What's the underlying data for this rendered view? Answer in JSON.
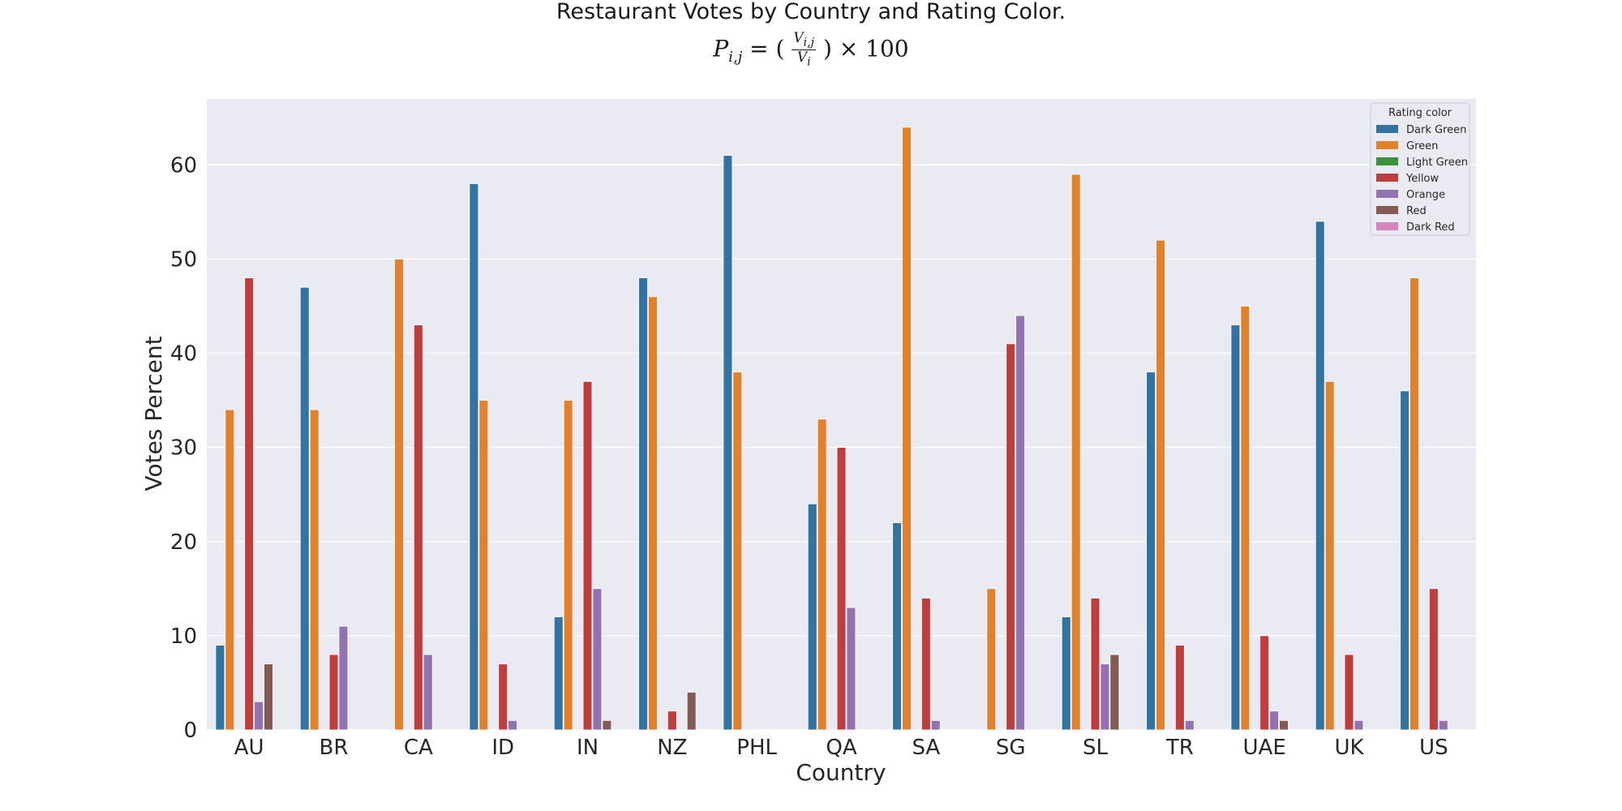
{
  "chart_data": {
    "type": "bar",
    "title": "Restaurant Votes by Country and Rating Color.",
    "subtitle": "P_{i,j} = (V_{i,j} / V_i) × 100",
    "xlabel": "Country",
    "ylabel": "Votes Percent",
    "ylim": [
      0,
      67
    ],
    "yticks": [
      0,
      10,
      20,
      30,
      40,
      50,
      60
    ],
    "grid": true,
    "legend_title": "Rating color",
    "legend_position": "top-right",
    "categories": [
      "AU",
      "BR",
      "CA",
      "ID",
      "IN",
      "NZ",
      "PHL",
      "QA",
      "SA",
      "SG",
      "SL",
      "TR",
      "UAE",
      "UK",
      "US"
    ],
    "series": [
      {
        "name": "Dark Green",
        "color": "#3274a1",
        "values": [
          9,
          47,
          0,
          58,
          12,
          48,
          61,
          24,
          22,
          0,
          12,
          38,
          43,
          54,
          36
        ]
      },
      {
        "name": "Green",
        "color": "#e1812c",
        "values": [
          34,
          34,
          50,
          35,
          35,
          46,
          38,
          33,
          64,
          15,
          59,
          52,
          45,
          37,
          48
        ]
      },
      {
        "name": "Light Green",
        "color": "#3a923a",
        "values": [
          0,
          0,
          0,
          0,
          0,
          0,
          0,
          0,
          0,
          0,
          0,
          0,
          0,
          0,
          0
        ]
      },
      {
        "name": "Yellow",
        "color": "#c03d3e",
        "values": [
          48,
          8,
          43,
          7,
          37,
          2,
          0,
          30,
          14,
          41,
          14,
          9,
          10,
          8,
          15
        ]
      },
      {
        "name": "Orange",
        "color": "#9372b2",
        "values": [
          3,
          11,
          8,
          1,
          15,
          0,
          0,
          13,
          1,
          44,
          7,
          1,
          2,
          1,
          1
        ]
      },
      {
        "name": "Red",
        "color": "#845b53",
        "values": [
          7,
          0,
          0,
          0,
          1,
          4,
          0,
          0,
          0,
          0,
          8,
          0,
          1,
          0,
          0
        ]
      },
      {
        "name": "Dark Red",
        "color": "#d684bd",
        "values": [
          0,
          0,
          0,
          0,
          0,
          0,
          0,
          0,
          0,
          0,
          0,
          0,
          0,
          0,
          0
        ]
      }
    ]
  }
}
